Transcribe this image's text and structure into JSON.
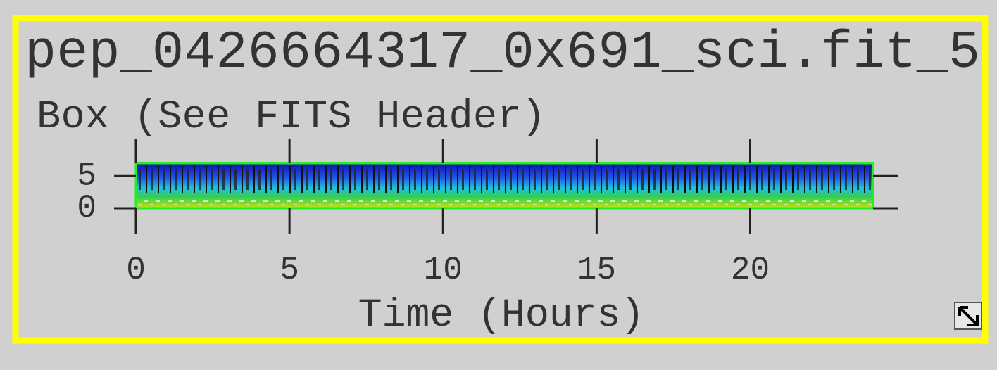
{
  "chart_data": {
    "type": "spectrogram",
    "title": "pep_0426664317_0x691_sci.fit_5",
    "y_label": "Box (See FITS Header)",
    "x_label": "Time (Hours)",
    "xlim": [
      0,
      24
    ],
    "xticks": [
      0,
      5,
      10,
      15,
      20
    ],
    "ylim": [
      0,
      7
    ],
    "yticks": [
      0,
      5
    ],
    "frame_color": "#ffff00",
    "border_color": "#22ee22"
  }
}
